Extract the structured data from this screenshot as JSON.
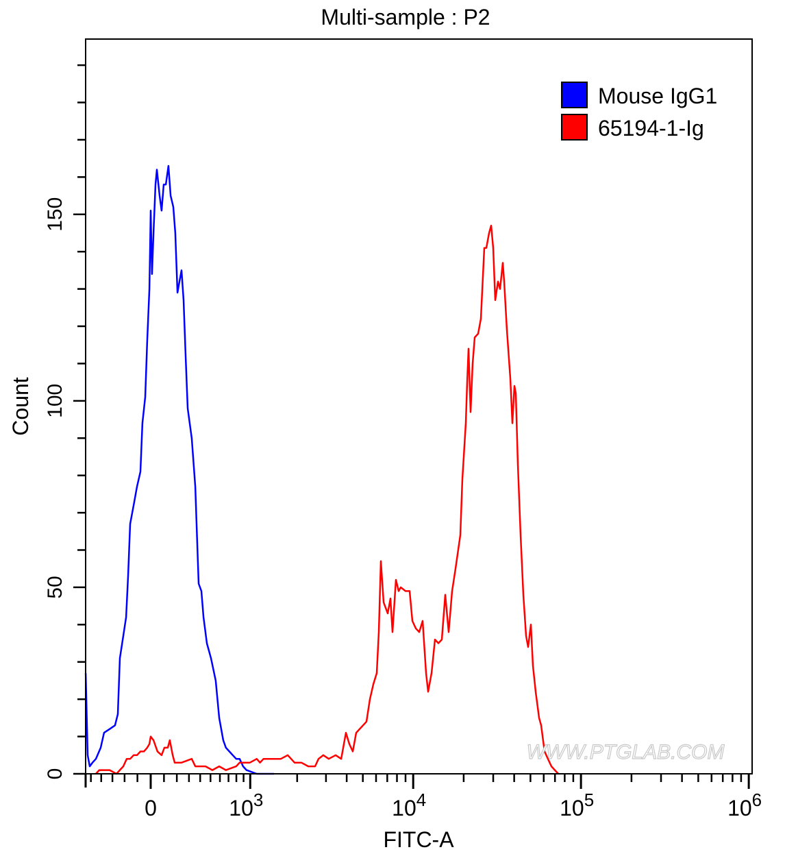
{
  "chart_data": {
    "type": "line",
    "title": "Multi-sample : P2",
    "xlabel": "FITC-A",
    "ylabel": "Count",
    "x_scale": "biexponential",
    "xlim": [
      -554,
      1000000
    ],
    "ylim": [
      0,
      197
    ],
    "grid": false,
    "legend_position": "top-right",
    "x_ticks": [
      {
        "value": 0,
        "base": "0",
        "exp": ""
      },
      {
        "value": 1000,
        "base": "10",
        "exp": "3"
      },
      {
        "value": 10000,
        "base": "10",
        "exp": "4"
      },
      {
        "value": 100000,
        "base": "10",
        "exp": "5"
      },
      {
        "value": 1000000,
        "base": "10",
        "exp": "6"
      }
    ],
    "y_ticks": [
      {
        "value": 0,
        "label": "0"
      },
      {
        "value": 50,
        "label": "50"
      },
      {
        "value": 100,
        "label": "100"
      },
      {
        "value": 150,
        "label": "150"
      }
    ],
    "watermark": "WWW.PTGLAB.COM",
    "series": [
      {
        "name": "Mouse IgG1",
        "color": "#0000ff",
        "x": [
          -554,
          -533,
          -512,
          -484,
          -450,
          -405,
          -374,
          -324,
          -278,
          -255,
          -238,
          -210,
          -188,
          -172,
          -156,
          -129,
          -103,
          -77,
          -62,
          -41,
          -26,
          -10,
          0,
          10,
          21,
          36,
          46,
          67,
          82,
          98,
          114,
          134,
          151,
          172,
          188,
          205,
          221,
          238,
          255,
          272,
          289,
          324,
          355,
          374,
          386,
          411,
          431,
          464,
          505,
          554,
          592,
          638,
          669,
          710,
          753,
          798,
          844,
          893,
          943,
          1106,
          1430
        ],
        "y": [
          27,
          5,
          2,
          3,
          4,
          7,
          11,
          12,
          13,
          16,
          31,
          37,
          42,
          53,
          67,
          72,
          77,
          81,
          94,
          101,
          116,
          130,
          151,
          134,
          145,
          158,
          162,
          155,
          151,
          158,
          158,
          163,
          155,
          152,
          145,
          129,
          132,
          135,
          127,
          112,
          98,
          90,
          77,
          61,
          51,
          49,
          42,
          35,
          31,
          25,
          15,
          9,
          7,
          6,
          5,
          4,
          4,
          2,
          1,
          0,
          0
        ]
      },
      {
        "name": "65194-1-Ig",
        "color": "#ff0000",
        "x": [
          -450,
          -418,
          -386,
          -324,
          -266,
          -210,
          -183,
          -156,
          -129,
          -103,
          -77,
          -51,
          -26,
          -10,
          0,
          21,
          51,
          82,
          103,
          129,
          145,
          167,
          183,
          238,
          324,
          355,
          386,
          450,
          519,
          592,
          669,
          798,
          844,
          943,
          995,
          1106,
          1163,
          1225,
          1358,
          1430,
          1582,
          1747,
          1835,
          1927,
          2124,
          2340,
          2576,
          2703,
          2891,
          3118,
          3432,
          3705,
          3959,
          4151,
          4351,
          4562,
          4782,
          5013,
          5257,
          5513,
          5777,
          6057,
          6231,
          6409,
          6655,
          7044,
          7315,
          7525,
          7886,
          8189,
          8424,
          8995,
          9520,
          9886,
          10360,
          10860,
          11385,
          11935,
          12277,
          12870,
          13490,
          14140,
          14820,
          15530,
          16280,
          17060,
          17885,
          19100,
          19645,
          20590,
          20985,
          21380,
          21990,
          22615,
          23260,
          24385,
          25320,
          26545,
          27300,
          28340,
          29150,
          30000,
          30850,
          32020,
          32950,
          34210,
          34860,
          36200,
          37950,
          39010,
          40130,
          40890,
          42070,
          43680,
          45350,
          47090,
          48420,
          50290,
          51730,
          53730,
          56290,
          57900,
          60690,
          63580,
          66670,
          69860,
          73250
        ],
        "y": [
          0,
          1,
          1,
          1,
          0,
          2,
          4,
          4,
          5,
          5,
          6,
          6,
          7,
          8,
          10,
          9,
          6,
          5,
          7,
          7,
          9,
          5,
          3,
          3,
          4,
          2,
          2,
          2,
          1,
          2,
          1,
          2,
          3,
          3,
          3,
          4,
          3,
          4,
          4,
          4,
          4,
          5,
          4,
          3,
          3,
          2,
          2,
          4,
          5,
          4,
          5,
          4,
          11,
          8,
          6,
          11,
          12,
          13,
          14,
          20,
          24,
          27,
          38,
          57,
          46,
          43,
          47,
          38,
          52,
          49,
          50,
          49,
          49,
          41,
          39,
          38,
          41,
          27,
          22,
          27,
          36,
          35,
          36,
          48,
          38,
          49,
          55,
          64,
          79,
          94,
          105,
          114,
          97,
          110,
          117,
          118,
          122,
          141,
          141,
          145,
          147,
          141,
          127,
          132,
          130,
          137,
          132,
          119,
          106,
          94,
          104,
          102,
          83,
          64,
          48,
          37,
          34,
          40,
          29,
          22,
          15,
          13,
          6,
          4,
          2,
          1,
          0
        ]
      }
    ]
  }
}
